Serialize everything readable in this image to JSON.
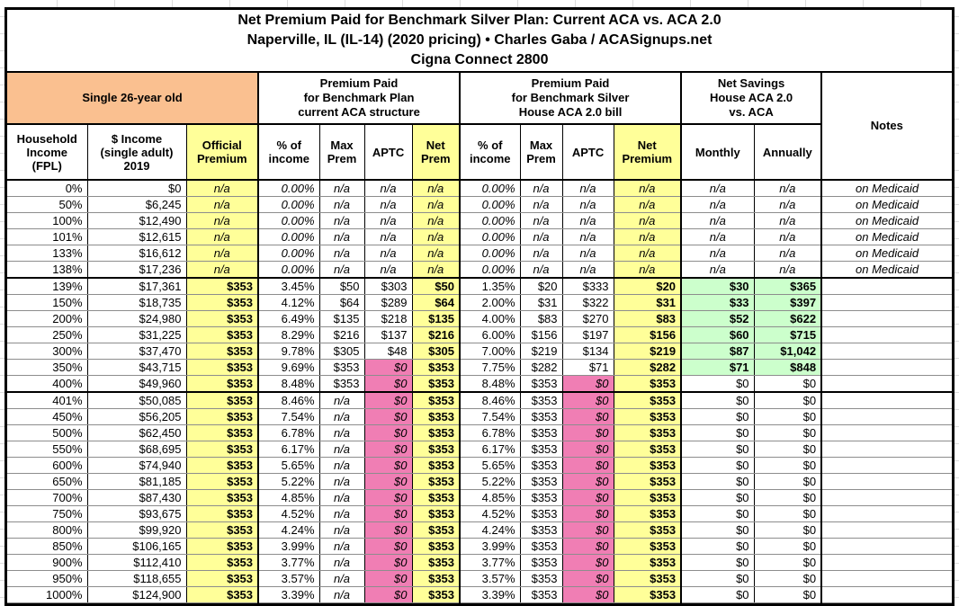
{
  "colors": {
    "orange": "#FAC090",
    "yellow": "#FFFF99",
    "pink": "#F07EB4",
    "green": "#CCFFCC",
    "border": "#000000"
  },
  "chart_data": {
    "type": "table",
    "title": "Net Premium Paid for Benchmark Silver Plan: Current ACA vs. ACA 2.0",
    "subtitle": "Naperville, IL (IL-14) (2020 pricing) • Charles Gaba / ACASignups.net",
    "subtitle2": "Cigna Connect 2800",
    "group_headers": [
      "Single 26-year old",
      "Premium Paid\nfor Benchmark Plan\ncurrent ACA structure",
      "Premium Paid\nfor Benchmark Silver\nHouse ACA 2.0 bill",
      "Net Savings\nHouse ACA 2.0\nvs. ACA",
      "Notes"
    ],
    "columns": [
      "Household\nIncome\n(FPL)",
      "$ Income\n(single adult)\n2019",
      "Official\nPremium",
      "% of\nincome",
      "Max\nPrem",
      "APTC",
      "Net\nPrem",
      "% of\nincome",
      "Max\nPrem",
      "APTC",
      "Net\nPremium",
      "Monthly",
      "Annually",
      ""
    ],
    "rows": [
      {
        "cells": [
          "0%",
          "$0",
          "n/a",
          "0.00%",
          "n/a",
          "n/a",
          "n/a",
          "0.00%",
          "n/a",
          "n/a",
          "n/a",
          "n/a",
          "n/a",
          "on Medicaid"
        ],
        "medicaid": true,
        "green": false,
        "thick_bottom": false
      },
      {
        "cells": [
          "50%",
          "$6,245",
          "n/a",
          "0.00%",
          "n/a",
          "n/a",
          "n/a",
          "0.00%",
          "n/a",
          "n/a",
          "n/a",
          "n/a",
          "n/a",
          "on Medicaid"
        ],
        "medicaid": true,
        "green": false,
        "thick_bottom": false
      },
      {
        "cells": [
          "100%",
          "$12,490",
          "n/a",
          "0.00%",
          "n/a",
          "n/a",
          "n/a",
          "0.00%",
          "n/a",
          "n/a",
          "n/a",
          "n/a",
          "n/a",
          "on Medicaid"
        ],
        "medicaid": true,
        "green": false,
        "thick_bottom": false
      },
      {
        "cells": [
          "101%",
          "$12,615",
          "n/a",
          "0.00%",
          "n/a",
          "n/a",
          "n/a",
          "0.00%",
          "n/a",
          "n/a",
          "n/a",
          "n/a",
          "n/a",
          "on Medicaid"
        ],
        "medicaid": true,
        "green": false,
        "thick_bottom": false
      },
      {
        "cells": [
          "133%",
          "$16,612",
          "n/a",
          "0.00%",
          "n/a",
          "n/a",
          "n/a",
          "0.00%",
          "n/a",
          "n/a",
          "n/a",
          "n/a",
          "n/a",
          "on Medicaid"
        ],
        "medicaid": true,
        "green": false,
        "thick_bottom": false
      },
      {
        "cells": [
          "138%",
          "$17,236",
          "n/a",
          "0.00%",
          "n/a",
          "n/a",
          "n/a",
          "0.00%",
          "n/a",
          "n/a",
          "n/a",
          "n/a",
          "n/a",
          "on Medicaid"
        ],
        "medicaid": true,
        "green": false,
        "thick_bottom": true
      },
      {
        "cells": [
          "139%",
          "$17,361",
          "$353",
          "3.45%",
          "$50",
          "$303",
          "$50",
          "1.35%",
          "$20",
          "$333",
          "$20",
          "$30",
          "$365",
          ""
        ],
        "medicaid": false,
        "green": true,
        "thick_bottom": false
      },
      {
        "cells": [
          "150%",
          "$18,735",
          "$353",
          "4.12%",
          "$64",
          "$289",
          "$64",
          "2.00%",
          "$31",
          "$322",
          "$31",
          "$33",
          "$397",
          ""
        ],
        "medicaid": false,
        "green": true,
        "thick_bottom": false
      },
      {
        "cells": [
          "200%",
          "$24,980",
          "$353",
          "6.49%",
          "$135",
          "$218",
          "$135",
          "4.00%",
          "$83",
          "$270",
          "$83",
          "$52",
          "$622",
          ""
        ],
        "medicaid": false,
        "green": true,
        "thick_bottom": false
      },
      {
        "cells": [
          "250%",
          "$31,225",
          "$353",
          "8.29%",
          "$216",
          "$137",
          "$216",
          "6.00%",
          "$156",
          "$197",
          "$156",
          "$60",
          "$715",
          ""
        ],
        "medicaid": false,
        "green": true,
        "thick_bottom": false
      },
      {
        "cells": [
          "300%",
          "$37,470",
          "$353",
          "9.78%",
          "$305",
          "$48",
          "$305",
          "7.00%",
          "$219",
          "$134",
          "$219",
          "$87",
          "$1,042",
          ""
        ],
        "medicaid": false,
        "green": true,
        "thick_bottom": false
      },
      {
        "cells": [
          "350%",
          "$43,715",
          "$353",
          "9.69%",
          "$353",
          "$0",
          "$353",
          "7.75%",
          "$282",
          "$71",
          "$282",
          "$71",
          "$848",
          ""
        ],
        "medicaid": false,
        "green": true,
        "thick_bottom": false
      },
      {
        "cells": [
          "400%",
          "$49,960",
          "$353",
          "8.48%",
          "$353",
          "$0",
          "$353",
          "8.48%",
          "$353",
          "$0",
          "$353",
          "$0",
          "$0",
          ""
        ],
        "medicaid": false,
        "green": false,
        "thick_bottom": true
      },
      {
        "cells": [
          "401%",
          "$50,085",
          "$353",
          "8.46%",
          "n/a",
          "$0",
          "$353",
          "8.46%",
          "$353",
          "$0",
          "$353",
          "$0",
          "$0",
          ""
        ],
        "medicaid": false,
        "green": false,
        "thick_bottom": false
      },
      {
        "cells": [
          "450%",
          "$56,205",
          "$353",
          "7.54%",
          "n/a",
          "$0",
          "$353",
          "7.54%",
          "$353",
          "$0",
          "$353",
          "$0",
          "$0",
          ""
        ],
        "medicaid": false,
        "green": false,
        "thick_bottom": false
      },
      {
        "cells": [
          "500%",
          "$62,450",
          "$353",
          "6.78%",
          "n/a",
          "$0",
          "$353",
          "6.78%",
          "$353",
          "$0",
          "$353",
          "$0",
          "$0",
          ""
        ],
        "medicaid": false,
        "green": false,
        "thick_bottom": false
      },
      {
        "cells": [
          "550%",
          "$68,695",
          "$353",
          "6.17%",
          "n/a",
          "$0",
          "$353",
          "6.17%",
          "$353",
          "$0",
          "$353",
          "$0",
          "$0",
          ""
        ],
        "medicaid": false,
        "green": false,
        "thick_bottom": false
      },
      {
        "cells": [
          "600%",
          "$74,940",
          "$353",
          "5.65%",
          "n/a",
          "$0",
          "$353",
          "5.65%",
          "$353",
          "$0",
          "$353",
          "$0",
          "$0",
          ""
        ],
        "medicaid": false,
        "green": false,
        "thick_bottom": false
      },
      {
        "cells": [
          "650%",
          "$81,185",
          "$353",
          "5.22%",
          "n/a",
          "$0",
          "$353",
          "5.22%",
          "$353",
          "$0",
          "$353",
          "$0",
          "$0",
          ""
        ],
        "medicaid": false,
        "green": false,
        "thick_bottom": false
      },
      {
        "cells": [
          "700%",
          "$87,430",
          "$353",
          "4.85%",
          "n/a",
          "$0",
          "$353",
          "4.85%",
          "$353",
          "$0",
          "$353",
          "$0",
          "$0",
          ""
        ],
        "medicaid": false,
        "green": false,
        "thick_bottom": false
      },
      {
        "cells": [
          "750%",
          "$93,675",
          "$353",
          "4.52%",
          "n/a",
          "$0",
          "$353",
          "4.52%",
          "$353",
          "$0",
          "$353",
          "$0",
          "$0",
          ""
        ],
        "medicaid": false,
        "green": false,
        "thick_bottom": false
      },
      {
        "cells": [
          "800%",
          "$99,920",
          "$353",
          "4.24%",
          "n/a",
          "$0",
          "$353",
          "4.24%",
          "$353",
          "$0",
          "$353",
          "$0",
          "$0",
          ""
        ],
        "medicaid": false,
        "green": false,
        "thick_bottom": false
      },
      {
        "cells": [
          "850%",
          "$106,165",
          "$353",
          "3.99%",
          "n/a",
          "$0",
          "$353",
          "3.99%",
          "$353",
          "$0",
          "$353",
          "$0",
          "$0",
          ""
        ],
        "medicaid": false,
        "green": false,
        "thick_bottom": false
      },
      {
        "cells": [
          "900%",
          "$112,410",
          "$353",
          "3.77%",
          "n/a",
          "$0",
          "$353",
          "3.77%",
          "$353",
          "$0",
          "$353",
          "$0",
          "$0",
          ""
        ],
        "medicaid": false,
        "green": false,
        "thick_bottom": false
      },
      {
        "cells": [
          "950%",
          "$118,655",
          "$353",
          "3.57%",
          "n/a",
          "$0",
          "$353",
          "3.57%",
          "$353",
          "$0",
          "$353",
          "$0",
          "$0",
          ""
        ],
        "medicaid": false,
        "green": false,
        "thick_bottom": false
      },
      {
        "cells": [
          "1000%",
          "$124,900",
          "$353",
          "3.39%",
          "n/a",
          "$0",
          "$353",
          "3.39%",
          "$353",
          "$0",
          "$353",
          "$0",
          "$0",
          ""
        ],
        "medicaid": false,
        "green": false,
        "thick_bottom": false
      }
    ]
  }
}
